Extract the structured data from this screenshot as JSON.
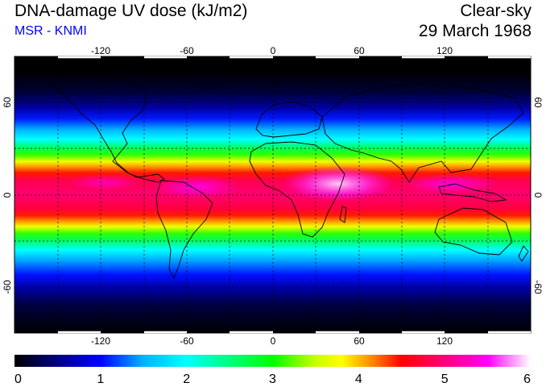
{
  "header": {
    "title": "DNA-damage UV dose (kJ/m2)",
    "subtitle": "MSR - KNMI",
    "condition": "Clear-sky",
    "date": "29 March 1968"
  },
  "map": {
    "lon_ticks": [
      -120,
      -60,
      0,
      60,
      120
    ],
    "lat_ticks": [
      60,
      0,
      -60
    ],
    "lon_range": [
      -180,
      180
    ],
    "lat_range": [
      -90,
      90
    ],
    "grid": "dotted every 30 degrees"
  },
  "colorbar": {
    "min": 0,
    "max": 6,
    "ticks": [
      0,
      1,
      2,
      3,
      4,
      5,
      6
    ],
    "stops": [
      {
        "value": 0.0,
        "color": "#000000"
      },
      {
        "value": 0.4,
        "color": "#00006e"
      },
      {
        "value": 1.0,
        "color": "#0000ff"
      },
      {
        "value": 1.5,
        "color": "#00b4ff"
      },
      {
        "value": 2.0,
        "color": "#00ffff"
      },
      {
        "value": 2.5,
        "color": "#00ff78"
      },
      {
        "value": 3.0,
        "color": "#00ff00"
      },
      {
        "value": 3.5,
        "color": "#c8ff00"
      },
      {
        "value": 3.8,
        "color": "#ffff00"
      },
      {
        "value": 4.2,
        "color": "#ff7800"
      },
      {
        "value": 4.5,
        "color": "#ff0000"
      },
      {
        "value": 5.0,
        "color": "#ff0078"
      },
      {
        "value": 5.5,
        "color": "#ff00ff"
      },
      {
        "value": 6.0,
        "color": "#ffffff"
      }
    ]
  }
}
